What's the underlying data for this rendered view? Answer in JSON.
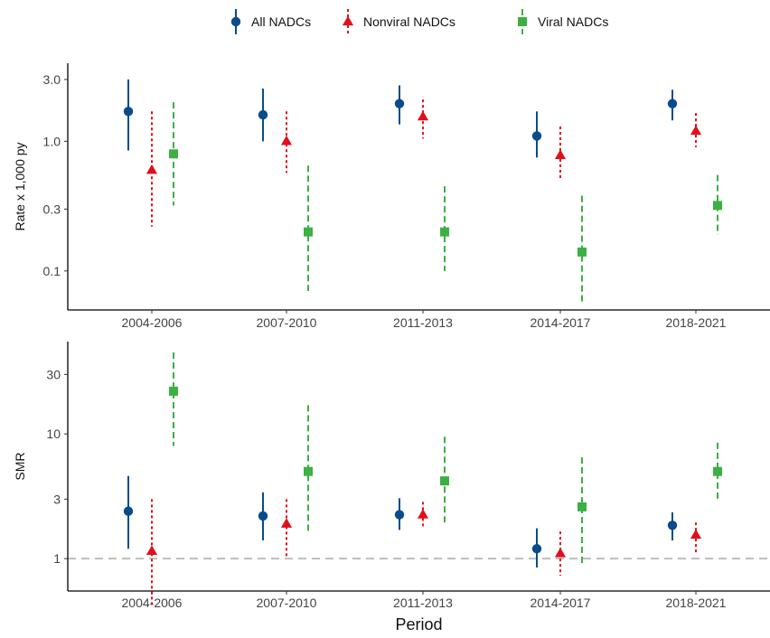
{
  "legend": {
    "position": "top-center",
    "items": [
      {
        "label": "All NADCs",
        "color": "#0a4b8c",
        "shape": "circle",
        "line": "solid"
      },
      {
        "label": "Nonviral NADCs",
        "color": "#e0101a",
        "shape": "triangle",
        "line": "dotted"
      },
      {
        "label": "Viral NADCs",
        "color": "#3cb043",
        "shape": "square",
        "line": "dashed"
      }
    ]
  },
  "chart_data": [
    {
      "type": "scatter",
      "panel": "top",
      "ylabel": "Rate x 1,000 py",
      "xlabel": "",
      "yscale": "log",
      "yticks": [
        0.1,
        0.3,
        1.0,
        3.0
      ],
      "ytick_labels": [
        "0.1",
        "0.3",
        "1.0",
        "3.0"
      ],
      "ylim": [
        0.05,
        4.0
      ],
      "categories": [
        "2004-2006",
        "2007-2010",
        "2011-2013",
        "2014-2017",
        "2018-2021"
      ],
      "series": [
        {
          "name": "All NADCs",
          "values": [
            1.7,
            1.6,
            1.95,
            1.1,
            1.95
          ],
          "lower": [
            0.85,
            1.0,
            1.35,
            0.75,
            1.45
          ],
          "upper": [
            3.0,
            2.55,
            2.7,
            1.7,
            2.5
          ]
        },
        {
          "name": "Nonviral NADCs",
          "values": [
            0.6,
            1.0,
            1.55,
            0.78,
            1.2
          ],
          "lower": [
            0.22,
            0.57,
            1.05,
            0.5,
            0.9
          ],
          "upper": [
            1.7,
            1.7,
            2.1,
            1.3,
            1.65
          ]
        },
        {
          "name": "Viral NADCs",
          "values": [
            0.8,
            0.2,
            0.2,
            0.14,
            0.32
          ],
          "lower": [
            0.32,
            0.07,
            0.1,
            0.055,
            0.19
          ],
          "upper": [
            2.0,
            0.65,
            0.45,
            0.38,
            0.55
          ]
        }
      ],
      "grid": false
    },
    {
      "type": "scatter",
      "panel": "bottom",
      "ylabel": "SMR",
      "xlabel": "Period",
      "yscale": "log",
      "yticks": [
        1,
        3,
        10,
        30
      ],
      "ytick_labels": [
        "1",
        "3",
        "10",
        "30"
      ],
      "ylim": [
        0.55,
        55
      ],
      "reference_line": 1,
      "categories": [
        "2004-2006",
        "2007-2010",
        "2011-2013",
        "2014-2017",
        "2018-2021"
      ],
      "series": [
        {
          "name": "All NADCs",
          "values": [
            2.4,
            2.2,
            2.25,
            1.2,
            1.85
          ],
          "lower": [
            1.2,
            1.4,
            1.7,
            0.85,
            1.4
          ],
          "upper": [
            4.6,
            3.4,
            3.05,
            1.75,
            2.35
          ]
        },
        {
          "name": "Nonviral NADCs",
          "values": [
            1.15,
            1.9,
            2.25,
            1.1,
            1.55
          ],
          "lower": [
            0.42,
            1.0,
            1.75,
            0.73,
            1.1
          ],
          "upper": [
            3.0,
            3.0,
            2.85,
            1.65,
            1.95
          ]
        },
        {
          "name": "Viral NADCs",
          "values": [
            22.0,
            5.0,
            4.2,
            2.6,
            5.0
          ],
          "lower": [
            8.0,
            1.65,
            1.95,
            0.9,
            2.9
          ],
          "upper": [
            45.0,
            17.0,
            9.5,
            6.5,
            8.5
          ]
        }
      ],
      "grid": false
    }
  ]
}
